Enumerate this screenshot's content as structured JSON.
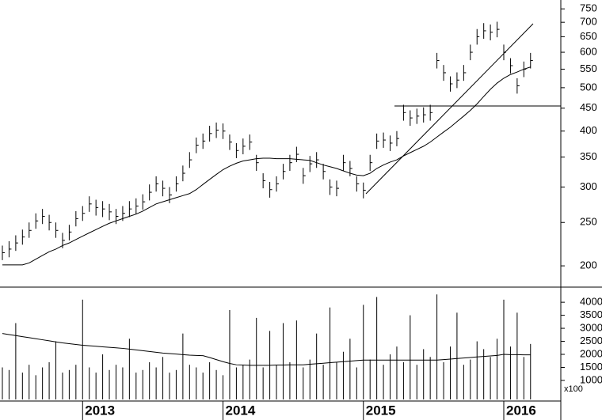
{
  "chart_data": [
    {
      "type": "ohlc",
      "log_scale": true,
      "color": "#000000",
      "categories": [
        null,
        null,
        null,
        null,
        null,
        null,
        null,
        null,
        null,
        null,
        null,
        null,
        "2013",
        null,
        null,
        null,
        null,
        null,
        null,
        null,
        null,
        null,
        null,
        null,
        null,
        null,
        null,
        null,
        null,
        null,
        null,
        null,
        null,
        "2014",
        null,
        null,
        null,
        null,
        null,
        null,
        null,
        null,
        null,
        null,
        null,
        null,
        null,
        null,
        null,
        null,
        null,
        null,
        null,
        null,
        "2015",
        null,
        null,
        null,
        null,
        null,
        null,
        null,
        null,
        null,
        null,
        null,
        null,
        null,
        null,
        null,
        null,
        null,
        null,
        null,
        null,
        "2016",
        null,
        null,
        null,
        null
      ],
      "high": [
        222,
        227,
        234,
        241,
        250,
        262,
        268,
        260,
        250,
        237,
        247,
        265,
        272,
        286,
        281,
        279,
        275,
        268,
        272,
        279,
        283,
        289,
        304,
        317,
        310,
        300,
        317,
        335,
        359,
        387,
        395,
        411,
        418,
        416,
        393,
        376,
        385,
        393,
        354,
        322,
        308,
        317,
        338,
        354,
        369,
        331,
        352,
        359,
        338,
        312,
        310,
        354,
        343,
        317,
        307,
        354,
        395,
        397,
        391,
        400,
        458,
        445,
        449,
        452,
        458,
        598,
        562,
        530,
        541,
        562,
        624,
        676,
        697,
        692,
        702,
        624,
        582,
        525,
        572,
        598
      ],
      "low": [
        206,
        209,
        216,
        223,
        231,
        242,
        248,
        240,
        231,
        219,
        228,
        245,
        252,
        264,
        259,
        257,
        253,
        248,
        252,
        257,
        261,
        267,
        280,
        293,
        286,
        276,
        293,
        309,
        331,
        357,
        365,
        379,
        386,
        384,
        363,
        348,
        355,
        363,
        326,
        298,
        284,
        293,
        312,
        326,
        341,
        305,
        324,
        331,
        312,
        288,
        286,
        326,
        317,
        293,
        283,
        326,
        365,
        367,
        361,
        370,
        422,
        411,
        415,
        418,
        422,
        552,
        518,
        490,
        499,
        518,
        576,
        624,
        643,
        638,
        648,
        576,
        538,
        485,
        528,
        552
      ],
      "close": [
        214,
        218,
        225,
        232,
        240,
        252,
        258,
        250,
        240,
        228,
        238,
        255,
        262,
        275,
        270,
        268,
        264,
        258,
        262,
        268,
        272,
        278,
        292,
        305,
        298,
        288,
        305,
        322,
        345,
        372,
        380,
        395,
        402,
        400,
        378,
        362,
        370,
        378,
        340,
        310,
        296,
        305,
        325,
        340,
        355,
        318,
        338,
        345,
        325,
        300,
        298,
        340,
        330,
        305,
        295,
        340,
        380,
        382,
        376,
        385,
        440,
        428,
        432,
        435,
        440,
        575,
        540,
        510,
        520,
        540,
        600,
        650,
        670,
        665,
        675,
        600,
        560,
        505,
        550,
        575
      ],
      "moving_average": [
        201,
        201,
        201,
        201,
        203,
        207,
        211,
        215,
        218,
        222,
        225,
        229,
        233,
        237,
        241,
        245,
        249,
        252,
        255,
        258,
        261,
        265,
        270,
        275,
        278,
        281,
        284,
        287,
        290,
        296,
        304,
        312,
        320,
        328,
        334,
        339,
        343,
        345,
        347,
        348,
        348,
        347,
        347,
        347,
        346,
        345,
        344,
        340,
        336,
        333,
        330,
        326,
        322,
        319,
        318,
        322,
        330,
        336,
        341,
        345,
        352,
        358,
        364,
        370,
        378,
        388,
        398,
        408,
        420,
        432,
        445,
        460,
        478,
        496,
        512,
        525,
        535,
        542,
        550,
        556
      ],
      "ylim": [
        180,
        785
      ],
      "yticks": [
        200,
        250,
        300,
        350,
        400,
        450,
        500,
        550,
        600,
        650,
        700,
        750
      ]
    },
    {
      "type": "bar",
      "color": "#000000",
      "unit_label": "x100",
      "values": [
        1500,
        1400,
        3200,
        1300,
        1600,
        1200,
        1500,
        1700,
        2500,
        1300,
        1400,
        1600,
        4100,
        1500,
        1300,
        2000,
        1400,
        1600,
        1500,
        2600,
        1300,
        1400,
        1700,
        1500,
        1900,
        1300,
        1400,
        2800,
        1600,
        1500,
        1300,
        1700,
        1400,
        1200,
        3700,
        1500,
        1600,
        1800,
        3400,
        1500,
        2900,
        1600,
        3200,
        1700,
        3300,
        1500,
        1800,
        2800,
        1600,
        3800,
        1700,
        2100,
        2600,
        1500,
        3900,
        1800,
        4200,
        1600,
        2000,
        2300,
        1700,
        3500,
        1600,
        2200,
        1900,
        4300,
        1700,
        2300,
        3600,
        1600,
        1800,
        2500,
        2200,
        1900,
        2600,
        4100,
        2300,
        3600,
        1900,
        2400
      ],
      "moving_average": [
        2800,
        2760,
        2720,
        2680,
        2640,
        2600,
        2560,
        2520,
        2480,
        2440,
        2410,
        2380,
        2350,
        2330,
        2310,
        2290,
        2270,
        2250,
        2230,
        2200,
        2170,
        2140,
        2110,
        2080,
        2050,
        2030,
        2010,
        1990,
        1970,
        1960,
        1950,
        1880,
        1800,
        1720,
        1650,
        1600,
        1590,
        1580,
        1580,
        1580,
        1580,
        1590,
        1590,
        1600,
        1600,
        1600,
        1620,
        1640,
        1660,
        1680,
        1700,
        1720,
        1740,
        1760,
        1780,
        1780,
        1780,
        1780,
        1780,
        1780,
        1780,
        1780,
        1780,
        1780,
        1780,
        1780,
        1800,
        1820,
        1840,
        1860,
        1880,
        1900,
        1920,
        1940,
        1960,
        2000,
        1990,
        1990,
        1980,
        1980
      ],
      "ylim": [
        270,
        4520
      ],
      "yticks": [
        1000,
        1500,
        2000,
        2500,
        3000,
        3500,
        4000
      ]
    }
  ]
}
